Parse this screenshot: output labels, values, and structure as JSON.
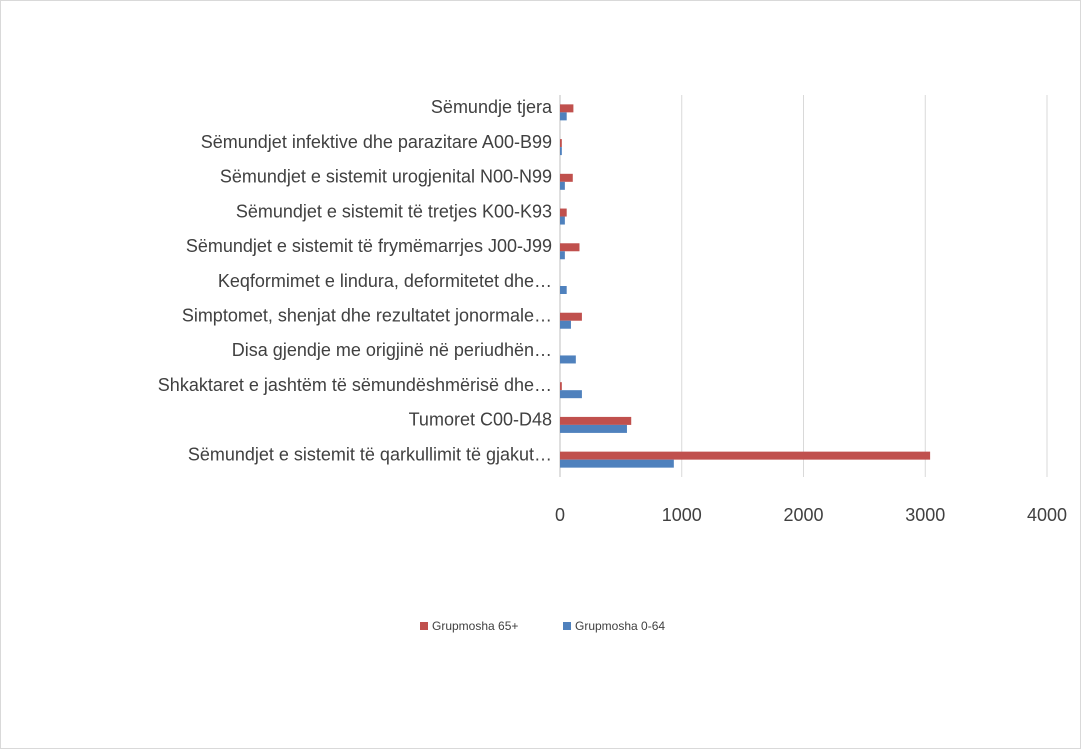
{
  "chart_data": {
    "type": "hbar",
    "categories": [
      "Sëmundjet e sistemit të qarkullimit të gjakut…",
      "Tumoret C00-D48",
      "Shkaktaret e jashtëm të sëmundëshmërisë dhe…",
      "Disa gjendje me origjinë në periudhën…",
      "Simptomet, shenjat dhe rezultatet jonormale…",
      "Keqformimet e lindura, deformitetet dhe…",
      "Sëmundjet e sistemit të frymëmarrjes J00-J99",
      "Sëmundjet e sistemit të tretjes K00-K93",
      "Sëmundjet e sistemit urogjenital N00-N99",
      "Sëmundjet infektive dhe parazitare A00-B99",
      "Sëmundje tjera"
    ],
    "series": [
      {
        "name": "Grupmosha 65+",
        "color": "#c0504d",
        "values": [
          3040,
          585,
          15,
          0,
          180,
          0,
          160,
          55,
          105,
          15,
          110
        ]
      },
      {
        "name": "Grupmosha 0-64",
        "color": "#4f81bd",
        "values": [
          935,
          550,
          180,
          130,
          90,
          55,
          40,
          40,
          40,
          15,
          55
        ]
      }
    ],
    "xlim": [
      0,
      4000
    ],
    "xticks": [
      0,
      1000,
      2000,
      3000,
      4000
    ],
    "grid": true,
    "legend": "bottom"
  }
}
